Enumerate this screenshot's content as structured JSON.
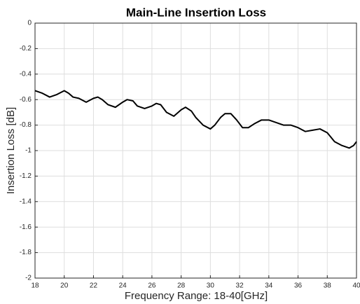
{
  "chart_data": {
    "type": "line",
    "title": "Main-Line Insertion Loss",
    "xlabel": "Frequency Range: 18-40[GHz]",
    "ylabel": "Insertion Loss [dB]",
    "x": [
      18,
      18.5,
      19,
      19.5,
      20,
      20.3,
      20.6,
      21,
      21.5,
      22,
      22.3,
      22.6,
      23,
      23.5,
      24,
      24.3,
      24.7,
      25,
      25.5,
      26,
      26.3,
      26.6,
      27,
      27.5,
      28,
      28.3,
      28.7,
      29,
      29.5,
      30,
      30.3,
      30.7,
      31,
      31.4,
      31.8,
      32.2,
      32.6,
      33,
      33.5,
      34,
      34.5,
      35,
      35.5,
      36,
      36.5,
      37,
      37.5,
      38,
      38.5,
      39,
      39.5,
      39.8,
      40
    ],
    "series": [
      {
        "color": "#000000",
        "values": [
          -0.53,
          -0.55,
          -0.58,
          -0.56,
          -0.53,
          -0.55,
          -0.58,
          -0.59,
          -0.62,
          -0.59,
          -0.58,
          -0.6,
          -0.64,
          -0.66,
          -0.62,
          -0.6,
          -0.61,
          -0.65,
          -0.67,
          -0.65,
          -0.63,
          -0.64,
          -0.7,
          -0.73,
          -0.68,
          -0.66,
          -0.69,
          -0.74,
          -0.8,
          -0.83,
          -0.8,
          -0.74,
          -0.71,
          -0.71,
          -0.76,
          -0.82,
          -0.82,
          -0.79,
          -0.76,
          -0.76,
          -0.78,
          -0.8,
          -0.8,
          -0.82,
          -0.85,
          -0.84,
          -0.83,
          -0.86,
          -0.93,
          -0.96,
          -0.98,
          -0.96,
          -0.93
        ]
      }
    ],
    "xlim": [
      18,
      40
    ],
    "xticks": [
      18,
      20,
      22,
      24,
      26,
      28,
      30,
      32,
      34,
      36,
      38,
      40
    ],
    "ylim": [
      -2,
      0
    ],
    "yticks": [
      -2,
      -1.8,
      -1.6,
      -1.4,
      -1.2,
      -1,
      -0.8,
      -0.6,
      -0.4,
      -0.2,
      0
    ],
    "grid": true
  }
}
